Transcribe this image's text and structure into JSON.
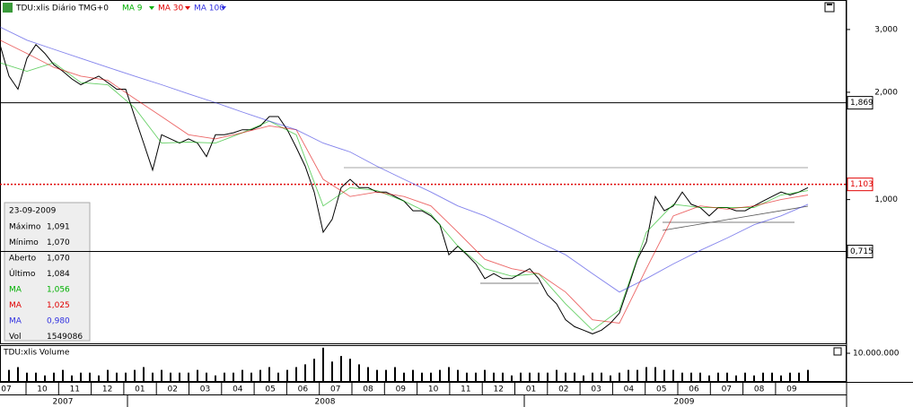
{
  "chart_data": [
    {
      "type": "line",
      "title": "TDU:xlis Diário TMG+0",
      "log_scale": true,
      "ylim": [
        0.395,
        3.63
      ],
      "yticks": [
        {
          "value": 3,
          "label": "3,000"
        },
        {
          "value": 2,
          "label": "2,000"
        },
        {
          "value": 1,
          "label": "1,000"
        }
      ],
      "levels": [
        {
          "value": 1.869,
          "label": "1,869",
          "color": "#000000",
          "style": "solid"
        },
        {
          "value": 1.103,
          "label": "1,103",
          "color": "#e00000",
          "style": "dotted"
        },
        {
          "value": 0.715,
          "label": "0,715",
          "color": "#000000",
          "style": "solid"
        }
      ],
      "series": [
        {
          "color": "#000000",
          "values": [
            2.72,
            2.22,
            2.04,
            2.49,
            2.72,
            2.57,
            2.39,
            2.29,
            2.18,
            2.1,
            2.16,
            2.22,
            2.13,
            2.04,
            2.04,
            1.71,
            1.44,
            1.21,
            1.52,
            1.48,
            1.44,
            1.48,
            1.44,
            1.32,
            1.52,
            1.52,
            1.54,
            1.57,
            1.57,
            1.61,
            1.71,
            1.71,
            1.57,
            1.4,
            1.24,
            1.05,
            0.81,
            0.88,
            1.08,
            1.14,
            1.08,
            1.08,
            1.05,
            1.05,
            1.02,
            0.99,
            0.93,
            0.93,
            0.9,
            0.85,
            0.7,
            0.74,
            0.7,
            0.66,
            0.6,
            0.62,
            0.6,
            0.6,
            0.62,
            0.64,
            0.6,
            0.54,
            0.51,
            0.46,
            0.44,
            0.43,
            0.42,
            0.43,
            0.45,
            0.48,
            0.57,
            0.68,
            0.76,
            1.02,
            0.93,
            0.96,
            1.05,
            0.97,
            0.95,
            0.9,
            0.95,
            0.95,
            0.93,
            0.93,
            0.96,
            0.99,
            1.02,
            1.05,
            1.03,
            1.05,
            1.08
          ]
        },
        {
          "name": "MA 9",
          "color": "#00b000",
          "values": [
            2.42,
            2.29,
            2.42,
            2.13,
            2.1,
            1.81,
            1.44,
            1.45,
            1.44,
            1.54,
            1.66,
            1.52,
            0.96,
            1.08,
            1.06,
            0.99,
            0.91,
            0.74,
            0.64,
            0.61,
            0.62,
            0.51,
            0.43,
            0.49,
            0.81,
            0.97,
            0.95,
            0.95,
            0.95,
            1.03,
            1.06
          ]
        },
        {
          "name": "MA 30",
          "color": "#e00000",
          "values": [
            2.8,
            2.57,
            2.35,
            2.22,
            2.16,
            1.92,
            1.71,
            1.52,
            1.48,
            1.54,
            1.61,
            1.57,
            1.14,
            1.02,
            1.05,
            1.02,
            0.96,
            0.81,
            0.68,
            0.64,
            0.62,
            0.55,
            0.46,
            0.45,
            0.64,
            0.9,
            0.96,
            0.94,
            0.96,
            1.0,
            1.03
          ]
        },
        {
          "name": "MA 100",
          "color": "#3030e0",
          "values": [
            3.05,
            2.8,
            2.64,
            2.49,
            2.35,
            2.22,
            2.1,
            1.98,
            1.87,
            1.76,
            1.66,
            1.57,
            1.44,
            1.36,
            1.24,
            1.14,
            1.05,
            0.96,
            0.9,
            0.83,
            0.76,
            0.7,
            0.62,
            0.55,
            0.6,
            0.66,
            0.72,
            0.78,
            0.85,
            0.9,
            0.97
          ]
        }
      ]
    },
    {
      "type": "bar",
      "title": "TDU:xlis Volume",
      "color": "#000000",
      "ylim": [
        0,
        12600000
      ],
      "yticks": [
        {
          "value": 10000000,
          "label": "10.000.000"
        }
      ],
      "values": [
        3000000,
        4000000,
        5000000,
        3000000,
        3000000,
        2000000,
        3000000,
        4000000,
        2000000,
        3000000,
        3000000,
        2000000,
        4000000,
        3000000,
        3000000,
        4000000,
        5000000,
        3000000,
        4000000,
        3000000,
        3000000,
        3000000,
        4000000,
        3000000,
        2000000,
        3000000,
        3000000,
        4000000,
        3000000,
        4000000,
        5000000,
        3000000,
        4000000,
        5000000,
        6000000,
        8000000,
        12000000,
        7000000,
        9000000,
        8000000,
        6000000,
        5000000,
        4000000,
        4000000,
        5000000,
        3000000,
        4000000,
        3000000,
        3000000,
        4000000,
        5000000,
        4000000,
        3000000,
        3000000,
        4000000,
        3000000,
        3000000,
        2000000,
        3000000,
        3000000,
        3000000,
        3000000,
        4000000,
        3000000,
        3000000,
        2000000,
        3000000,
        3000000,
        2000000,
        3000000,
        4000000,
        4000000,
        5000000,
        5000000,
        4000000,
        4000000,
        3000000,
        3000000,
        3000000,
        2000000,
        3000000,
        3000000,
        2000000,
        3000000,
        2000000,
        3000000,
        3000000,
        2000000,
        3000000,
        3000000,
        4000000
      ]
    }
  ],
  "x_axis": {
    "months": [
      "07",
      "10",
      "11",
      "12",
      "01",
      "02",
      "03",
      "04",
      "05",
      "06",
      "07",
      "08",
      "09",
      "10",
      "11",
      "12",
      "01",
      "02",
      "03",
      "04",
      "05",
      "06",
      "07",
      "08",
      "09"
    ],
    "years": [
      "2007",
      "2008",
      "2009"
    ]
  },
  "info_box": {
    "date": "23-09-2009",
    "rows": [
      {
        "label": "Máximo",
        "value": "1,091",
        "color": "#000000"
      },
      {
        "label": "Mínimo",
        "value": "1,070",
        "color": "#000000"
      },
      {
        "label": "Aberto",
        "value": "1,070",
        "color": "#000000"
      },
      {
        "label": "Último",
        "value": "1,084",
        "color": "#000000"
      },
      {
        "label": "MA",
        "value": "1,056",
        "color": "#00b000"
      },
      {
        "label": "MA",
        "value": "1,025",
        "color": "#e00000"
      },
      {
        "label": "MA",
        "value": "0,980",
        "color": "#3030e0"
      },
      {
        "label": "Vol",
        "value": "1549086",
        "color": "#000000"
      }
    ]
  }
}
